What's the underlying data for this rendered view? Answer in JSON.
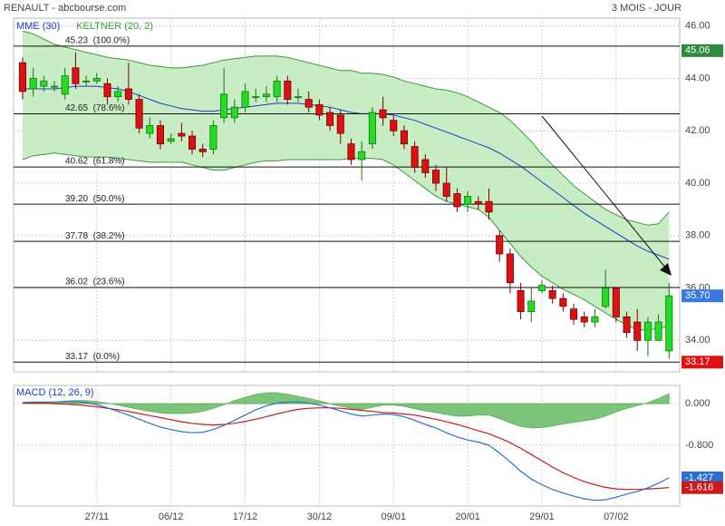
{
  "chart_data": {
    "type": "candlestick",
    "title": "RENAULT - abcbourse.com",
    "period": "3 MOIS - JOUR",
    "xlim": [
      -0.85,
      62
    ],
    "xticks": [
      {
        "value": 7,
        "label": "27/11"
      },
      {
        "value": 14,
        "label": "06/12"
      },
      {
        "value": 21,
        "label": "17/12"
      },
      {
        "value": 28,
        "label": "30/12"
      },
      {
        "value": 35,
        "label": "09/01"
      },
      {
        "value": 42,
        "label": "20/01"
      },
      {
        "value": 49,
        "label": "29/01"
      },
      {
        "value": 56,
        "label": "07/02"
      }
    ],
    "ylim": [
      32.8,
      46.3
    ],
    "yticks": [
      {
        "value": 34,
        "label": "34.00"
      },
      {
        "value": 36,
        "label": "36.00"
      },
      {
        "value": 38,
        "label": "38.00"
      },
      {
        "value": 40,
        "label": "40.00"
      },
      {
        "value": 42,
        "label": "42.00"
      },
      {
        "value": 44,
        "label": "44.00"
      },
      {
        "value": 46,
        "label": "46.00"
      }
    ],
    "grid": true,
    "candles": {
      "up_color": "#22dd22",
      "down_color": "#dd1111",
      "open": [
        44.6,
        43.6,
        43.7,
        43.7,
        43.4,
        44.4,
        43.9,
        43.9,
        43.8,
        43.3,
        43.6,
        43.2,
        41.9,
        42.2,
        41.6,
        41.9,
        41.8,
        41.3,
        41.3,
        42.5,
        42.5,
        42.9,
        43.3,
        43.3,
        43.3,
        43.9,
        43.3,
        43.2,
        43.0,
        42.7,
        42.6,
        41.5,
        40.9,
        41.5,
        42.8,
        42.4,
        42.0,
        41.4,
        40.9,
        40.5,
        40.0,
        39.6,
        39.2,
        39.3,
        39.3,
        38.0,
        37.3,
        35.9,
        35.1,
        35.9,
        35.9,
        35.6,
        35.2,
        34.9,
        34.7,
        35.3,
        36.0,
        34.9,
        34.7,
        34.0,
        34.0,
        33.6
      ],
      "high": [
        44.8,
        44.4,
        44.1,
        43.9,
        44.4,
        45.0,
        44.1,
        44.2,
        44.0,
        43.7,
        44.6,
        43.4,
        42.5,
        42.4,
        41.9,
        42.3,
        42.0,
        41.5,
        42.4,
        44.4,
        43.2,
        43.8,
        43.6,
        43.7,
        44.1,
        44.1,
        43.6,
        43.5,
        43.2,
        42.9,
        42.8,
        41.7,
        41.6,
        42.9,
        43.3,
        42.6,
        42.2,
        41.6,
        41.1,
        40.7,
        40.6,
        39.8,
        39.7,
        39.5,
        39.8,
        38.2,
        37.5,
        36.2,
        36.0,
        36.3,
        36.1,
        35.8,
        35.4,
        35.1,
        35.2,
        36.7,
        36.0,
        35.1,
        35.2,
        34.9,
        35.0,
        36.2
      ],
      "low": [
        43.2,
        43.3,
        43.5,
        43.5,
        43.2,
        43.6,
        43.7,
        43.8,
        43.0,
        43.1,
        43.0,
        41.9,
        41.7,
        41.3,
        41.5,
        41.6,
        41.1,
        41.0,
        41.1,
        42.3,
        42.3,
        42.7,
        43.1,
        43.1,
        43.1,
        43.0,
        43.1,
        42.7,
        42.4,
        42.0,
        41.5,
        40.7,
        40.1,
        41.3,
        42.2,
        41.8,
        41.3,
        40.4,
        40.2,
        39.7,
        39.3,
        38.9,
        38.9,
        39.0,
        38.6,
        37.0,
        35.8,
        34.8,
        34.7,
        35.8,
        35.4,
        35.1,
        34.6,
        34.5,
        34.5,
        35.2,
        34.7,
        34.1,
        33.6,
        33.4,
        34.5,
        33.3
      ],
      "close": [
        43.5,
        44.0,
        43.9,
        43.7,
        44.1,
        43.8,
        43.9,
        44.0,
        43.3,
        43.5,
        43.2,
        42.1,
        42.2,
        41.5,
        41.7,
        41.8,
        41.3,
        41.2,
        42.2,
        43.4,
        42.9,
        43.5,
        43.3,
        43.4,
        43.9,
        43.2,
        43.3,
        42.9,
        42.6,
        42.2,
        41.9,
        40.9,
        41.2,
        42.7,
        42.5,
        42.0,
        41.5,
        40.6,
        40.4,
        40.0,
        39.5,
        39.1,
        39.5,
        39.2,
        38.9,
        37.3,
        36.2,
        35.1,
        35.5,
        36.1,
        35.6,
        35.3,
        34.8,
        34.7,
        34.9,
        36.0,
        34.9,
        34.3,
        34.0,
        34.7,
        34.7,
        35.7
      ]
    },
    "series": [
      {
        "name": "MME (30)",
        "color": "#1a3cc8",
        "values": [
          43.6,
          43.6,
          43.6,
          43.6,
          43.65,
          43.7,
          43.7,
          43.7,
          43.65,
          43.6,
          43.5,
          43.35,
          43.2,
          43.05,
          42.95,
          42.85,
          42.8,
          42.75,
          42.75,
          42.8,
          42.85,
          42.9,
          42.95,
          43.0,
          43.05,
          43.05,
          43.05,
          43.0,
          42.95,
          42.9,
          42.8,
          42.7,
          42.65,
          42.65,
          42.65,
          42.6,
          42.5,
          42.4,
          42.25,
          42.1,
          41.95,
          41.8,
          41.65,
          41.5,
          41.35,
          41.15,
          40.9,
          40.65,
          40.35,
          40.05,
          39.75,
          39.45,
          39.15,
          38.85,
          38.6,
          38.35,
          38.1,
          37.85,
          37.6,
          37.4,
          37.25,
          37.1
        ]
      },
      {
        "name": "KELTNER (20, 2)",
        "color": "#3a9a3a",
        "fill": "#c8ecc4",
        "upper": [
          45.8,
          45.7,
          45.5,
          45.3,
          45.2,
          45.1,
          45.0,
          44.9,
          44.8,
          44.75,
          44.7,
          44.6,
          44.5,
          44.45,
          44.4,
          44.4,
          44.45,
          44.5,
          44.6,
          44.7,
          44.75,
          44.8,
          44.85,
          44.85,
          44.85,
          44.8,
          44.7,
          44.6,
          44.5,
          44.4,
          44.3,
          44.3,
          44.2,
          44.2,
          44.15,
          44.05,
          43.9,
          43.8,
          43.7,
          43.6,
          43.55,
          43.45,
          43.3,
          43.1,
          42.9,
          42.7,
          42.4,
          42.0,
          41.6,
          41.1,
          40.7,
          40.3,
          39.9,
          39.6,
          39.3,
          39.0,
          38.8,
          38.6,
          38.5,
          38.4,
          38.45,
          38.9
        ],
        "lower": [
          40.9,
          41.05,
          41.1,
          41.15,
          41.1,
          41.05,
          41.0,
          41.0,
          41.0,
          40.95,
          40.9,
          40.85,
          40.8,
          40.8,
          40.8,
          40.8,
          40.7,
          40.6,
          40.5,
          40.5,
          40.6,
          40.7,
          40.8,
          40.85,
          40.85,
          40.9,
          40.9,
          40.9,
          40.9,
          40.9,
          40.9,
          40.95,
          40.95,
          40.95,
          40.9,
          40.7,
          40.4,
          40.1,
          39.8,
          39.5,
          39.3,
          39.2,
          39.1,
          39.0,
          38.7,
          38.2,
          37.7,
          37.2,
          36.8,
          36.45,
          36.2,
          35.95,
          35.75,
          35.55,
          35.3,
          35.05,
          34.8,
          34.6,
          34.4,
          34.4,
          34.45,
          34.55
        ]
      }
    ],
    "fibonacci": [
      {
        "value": 45.23,
        "label": "45.23  (100.0%)"
      },
      {
        "value": 42.65,
        "label": "42.65  (78.6%)"
      },
      {
        "value": 40.62,
        "label": "40.62  (61.8%)"
      },
      {
        "value": 39.2,
        "label": "39.20  (50.0%)"
      },
      {
        "value": 37.78,
        "label": "37.78  (38.2%)"
      },
      {
        "value": 36.02,
        "label": "36.02  (23.6%)"
      },
      {
        "value": 33.17,
        "label": "33.17  (0.0%)"
      }
    ],
    "price_tags": [
      {
        "value": 45.06,
        "color": "#2e8b3e"
      },
      {
        "value": 35.7,
        "label": "35.70",
        "color": "#3a78e0"
      },
      {
        "value": 33.17,
        "color": "#dd1111"
      }
    ],
    "macd": {
      "title": "MACD (12, 26, 9)",
      "ylim": [
        -1.97,
        0.35
      ],
      "yticks": [
        {
          "value": 0,
          "label": "0.000"
        },
        {
          "value": -0.8,
          "label": "-0.800"
        }
      ],
      "macd_line": {
        "color": "#2a6fd0",
        "values": [
          0.02,
          0.03,
          0.03,
          0.03,
          0.04,
          0.04,
          0.02,
          -0.02,
          -0.08,
          -0.15,
          -0.22,
          -0.3,
          -0.38,
          -0.45,
          -0.5,
          -0.54,
          -0.56,
          -0.55,
          -0.5,
          -0.42,
          -0.32,
          -0.22,
          -0.12,
          -0.04,
          0.01,
          0.03,
          0.03,
          0.01,
          -0.03,
          -0.08,
          -0.14,
          -0.2,
          -0.24,
          -0.22,
          -0.2,
          -0.21,
          -0.25,
          -0.32,
          -0.4,
          -0.47,
          -0.56,
          -0.64,
          -0.7,
          -0.74,
          -0.8,
          -0.95,
          -1.12,
          -1.3,
          -1.45,
          -1.56,
          -1.65,
          -1.72,
          -1.78,
          -1.83,
          -1.86,
          -1.85,
          -1.8,
          -1.74,
          -1.69,
          -1.62,
          -1.53,
          -1.427
        ]
      },
      "signal_line": {
        "color": "#cc1a1a",
        "values": [
          0.01,
          0.01,
          0.01,
          0.0,
          -0.01,
          -0.02,
          -0.04,
          -0.06,
          -0.09,
          -0.12,
          -0.15,
          -0.19,
          -0.23,
          -0.27,
          -0.31,
          -0.35,
          -0.38,
          -0.4,
          -0.41,
          -0.4,
          -0.38,
          -0.34,
          -0.3,
          -0.25,
          -0.2,
          -0.15,
          -0.11,
          -0.09,
          -0.08,
          -0.08,
          -0.09,
          -0.11,
          -0.13,
          -0.15,
          -0.17,
          -0.18,
          -0.2,
          -0.22,
          -0.26,
          -0.3,
          -0.35,
          -0.4,
          -0.46,
          -0.52,
          -0.58,
          -0.66,
          -0.75,
          -0.86,
          -0.98,
          -1.1,
          -1.22,
          -1.33,
          -1.42,
          -1.5,
          -1.56,
          -1.61,
          -1.64,
          -1.65,
          -1.65,
          -1.64,
          -1.63,
          -1.616
        ]
      },
      "histogram": {
        "color": "#5fae5a",
        "fill": "#7cc47a",
        "values": [
          0.01,
          0.02,
          0.02,
          0.03,
          0.05,
          0.06,
          0.06,
          0.04,
          0.01,
          -0.03,
          -0.07,
          -0.11,
          -0.15,
          -0.18,
          -0.19,
          -0.19,
          -0.18,
          -0.15,
          -0.09,
          -0.02,
          0.06,
          0.12,
          0.18,
          0.21,
          0.21,
          0.18,
          0.14,
          0.1,
          0.05,
          0.0,
          -0.05,
          -0.09,
          -0.11,
          -0.07,
          -0.03,
          -0.03,
          -0.05,
          -0.1,
          -0.14,
          -0.17,
          -0.21,
          -0.24,
          -0.24,
          -0.22,
          -0.22,
          -0.29,
          -0.37,
          -0.44,
          -0.47,
          -0.46,
          -0.43,
          -0.39,
          -0.36,
          -0.33,
          -0.3,
          -0.24,
          -0.16,
          -0.09,
          -0.04,
          0.02,
          0.1,
          0.189
        ]
      },
      "tags": [
        {
          "value": -1.427,
          "color": "#2a6fd0"
        },
        {
          "value": -1.616,
          "color": "#cc1a1a"
        }
      ]
    }
  }
}
